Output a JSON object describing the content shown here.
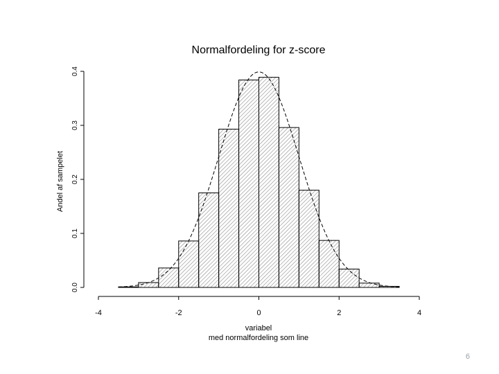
{
  "slide": {
    "page_number": "6"
  },
  "chart_data": {
    "type": "bar",
    "title": "Normalfordeling for z-score",
    "xlabel": "variabel",
    "xlabel_sub": "med normalfordeling som line",
    "ylabel": "Andel af sampelet",
    "x_ticks": [
      "-4",
      "-2",
      "0",
      "2",
      "4"
    ],
    "x_tick_values": [
      -4,
      -2,
      0,
      2,
      4
    ],
    "y_ticks": [
      "0.0",
      "0.1",
      "0.2",
      "0.3",
      "0.4"
    ],
    "y_tick_values": [
      0.0,
      0.1,
      0.2,
      0.3,
      0.4
    ],
    "xlim": [
      -4,
      4
    ],
    "ylim": [
      0,
      0.4
    ],
    "bin_edges": [
      -3.5,
      -3.0,
      -2.5,
      -2.0,
      -1.5,
      -1.0,
      -0.5,
      0.0,
      0.5,
      1.0,
      1.5,
      2.0,
      2.5,
      3.0,
      3.5
    ],
    "values": [
      0.001,
      0.009,
      0.036,
      0.086,
      0.175,
      0.293,
      0.384,
      0.389,
      0.296,
      0.18,
      0.087,
      0.034,
      0.008,
      0.002
    ],
    "overlay": {
      "type": "line",
      "style": "dashed",
      "name": "normal density",
      "mean": 0,
      "sd": 1
    },
    "colors": {
      "axis": "#000000",
      "bar_stroke": "#000000",
      "hatch": "#8a8a8a",
      "bar_fill": "#ffffff"
    }
  }
}
